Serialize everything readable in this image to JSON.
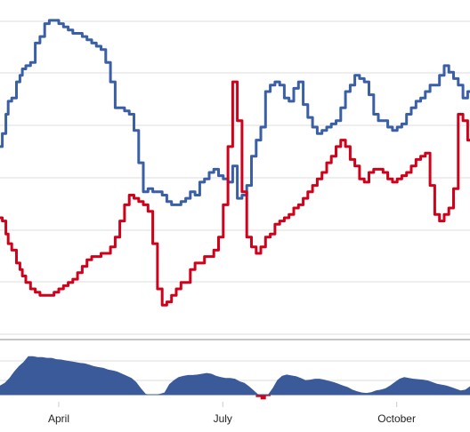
{
  "colors": {
    "series_blue": "#3a5fa6",
    "series_red": "#d0021b",
    "osc_fill": "#3a5a9a",
    "osc_neg": "#d0021b",
    "grid": "#dddddd",
    "divider": "#888888"
  },
  "chart_data": [
    {
      "type": "line",
      "title": "",
      "xlabel": "",
      "ylabel": "",
      "x_tick_labels": [
        "April",
        "July",
        "October"
      ],
      "x_tick_positions": [
        0.125,
        0.474,
        0.844
      ],
      "ylim": [
        0,
        100
      ],
      "grid": true,
      "legend": "none",
      "series": [
        {
          "color": "#3a5fa6",
          "x": [
            0.0,
            0.01,
            0.015,
            0.02,
            0.03,
            0.04,
            0.045,
            0.05,
            0.06,
            0.07,
            0.08,
            0.09,
            0.1,
            0.11,
            0.12,
            0.13,
            0.14,
            0.15,
            0.16,
            0.17,
            0.18,
            0.19,
            0.2,
            0.21,
            0.22,
            0.23,
            0.24,
            0.25,
            0.26,
            0.27,
            0.28,
            0.29,
            0.3,
            0.31,
            0.32,
            0.33,
            0.34,
            0.35,
            0.36,
            0.37,
            0.38,
            0.39,
            0.4,
            0.41,
            0.42,
            0.43,
            0.44,
            0.45,
            0.46,
            0.47,
            0.48,
            0.49,
            0.5,
            0.51,
            0.52,
            0.53,
            0.54,
            0.55,
            0.56,
            0.57,
            0.58,
            0.59,
            0.6,
            0.61,
            0.62,
            0.63,
            0.64,
            0.65,
            0.66,
            0.67,
            0.68,
            0.69,
            0.7,
            0.71,
            0.72,
            0.73,
            0.74,
            0.75,
            0.76,
            0.77,
            0.78,
            0.79,
            0.8,
            0.81,
            0.82,
            0.83,
            0.84,
            0.85,
            0.86,
            0.87,
            0.88,
            0.89,
            0.9,
            0.91,
            0.92,
            0.93,
            0.94,
            0.95,
            0.96,
            0.97,
            0.98,
            0.99,
            1.0
          ],
          "y": [
            58,
            62,
            68,
            72,
            73,
            78,
            80,
            82,
            83,
            84,
            90,
            92,
            96,
            97,
            97,
            96,
            95,
            94,
            93,
            93,
            92,
            91,
            90,
            89,
            88,
            84,
            78,
            70,
            70,
            69,
            68,
            63,
            53,
            44,
            45,
            44,
            44,
            43,
            41,
            40,
            40,
            41,
            42,
            44,
            43,
            47,
            48,
            50,
            51,
            49,
            48,
            47,
            52,
            42,
            43,
            46,
            55,
            60,
            64,
            75,
            77,
            78,
            77,
            73,
            72,
            76,
            78,
            71,
            67,
            64,
            62,
            63,
            64,
            65,
            66,
            70,
            75,
            77,
            80,
            79,
            78,
            74,
            68,
            66,
            66,
            64,
            63,
            64,
            65,
            68,
            70,
            72,
            73,
            75,
            77,
            77,
            80,
            83,
            81,
            79,
            77,
            73,
            75
          ]
        },
        {
          "color": "#d0021b",
          "x": [
            0.0,
            0.01,
            0.015,
            0.02,
            0.03,
            0.04,
            0.045,
            0.05,
            0.06,
            0.07,
            0.08,
            0.09,
            0.1,
            0.11,
            0.12,
            0.13,
            0.14,
            0.15,
            0.16,
            0.17,
            0.18,
            0.19,
            0.2,
            0.21,
            0.22,
            0.23,
            0.24,
            0.25,
            0.26,
            0.27,
            0.28,
            0.29,
            0.3,
            0.31,
            0.32,
            0.33,
            0.34,
            0.35,
            0.36,
            0.37,
            0.38,
            0.39,
            0.4,
            0.41,
            0.42,
            0.43,
            0.44,
            0.45,
            0.46,
            0.47,
            0.48,
            0.49,
            0.5,
            0.51,
            0.52,
            0.53,
            0.54,
            0.55,
            0.56,
            0.57,
            0.58,
            0.59,
            0.6,
            0.61,
            0.62,
            0.63,
            0.64,
            0.65,
            0.66,
            0.67,
            0.68,
            0.69,
            0.7,
            0.71,
            0.72,
            0.73,
            0.74,
            0.75,
            0.76,
            0.77,
            0.78,
            0.79,
            0.8,
            0.81,
            0.82,
            0.83,
            0.84,
            0.85,
            0.86,
            0.87,
            0.88,
            0.89,
            0.9,
            0.91,
            0.92,
            0.93,
            0.94,
            0.95,
            0.96,
            0.97,
            0.98,
            0.99,
            1.0
          ],
          "y": [
            36,
            35,
            31,
            28,
            26,
            22,
            20,
            18,
            16,
            14,
            13,
            12,
            12,
            12,
            13,
            14,
            15,
            16,
            17,
            19,
            21,
            23,
            24,
            24,
            25,
            25,
            27,
            30,
            35,
            40,
            43,
            42,
            41,
            40,
            38,
            28,
            14,
            9,
            10,
            12,
            14,
            16,
            16,
            20,
            22,
            22,
            24,
            24,
            26,
            30,
            40,
            58,
            78,
            66,
            44,
            30,
            27,
            25,
            27,
            30,
            31,
            34,
            35,
            36,
            37,
            39,
            40,
            42,
            44,
            46,
            48,
            50,
            53,
            55,
            58,
            60,
            58,
            54,
            52,
            48,
            47,
            50,
            51,
            51,
            50,
            48,
            47,
            48,
            49,
            50,
            52,
            54,
            55,
            56,
            46,
            37,
            35,
            37,
            39,
            45,
            68,
            66,
            60
          ]
        }
      ]
    },
    {
      "type": "area",
      "title": "",
      "xlabel": "",
      "ylabel": "",
      "ylim": [
        -15,
        100
      ],
      "grid": true,
      "legend": "none",
      "series": [
        {
          "color": "#3a5a9a",
          "x": [
            0.0,
            0.01,
            0.02,
            0.03,
            0.04,
            0.05,
            0.06,
            0.07,
            0.08,
            0.09,
            0.1,
            0.11,
            0.12,
            0.13,
            0.14,
            0.15,
            0.16,
            0.17,
            0.18,
            0.19,
            0.2,
            0.21,
            0.22,
            0.23,
            0.24,
            0.25,
            0.26,
            0.27,
            0.28,
            0.29,
            0.3,
            0.31,
            0.32,
            0.33,
            0.34,
            0.35,
            0.36,
            0.37,
            0.38,
            0.39,
            0.4,
            0.41,
            0.42,
            0.43,
            0.44,
            0.45,
            0.46,
            0.47,
            0.48,
            0.49,
            0.5,
            0.51,
            0.52,
            0.53,
            0.54,
            0.55,
            0.56,
            0.57,
            0.58,
            0.59,
            0.6,
            0.61,
            0.62,
            0.63,
            0.64,
            0.65,
            0.66,
            0.67,
            0.68,
            0.69,
            0.7,
            0.71,
            0.72,
            0.73,
            0.74,
            0.75,
            0.76,
            0.77,
            0.78,
            0.79,
            0.8,
            0.81,
            0.82,
            0.83,
            0.84,
            0.85,
            0.86,
            0.87,
            0.88,
            0.89,
            0.9,
            0.91,
            0.92,
            0.93,
            0.94,
            0.95,
            0.96,
            0.97,
            0.98,
            0.99,
            1.0
          ],
          "values": [
            22,
            28,
            40,
            55,
            68,
            78,
            92,
            92,
            90,
            90,
            88,
            88,
            85,
            84,
            82,
            80,
            78,
            76,
            75,
            72,
            68,
            66,
            64,
            60,
            58,
            55,
            50,
            45,
            40,
            30,
            15,
            2,
            0,
            0,
            2,
            5,
            25,
            35,
            42,
            45,
            47,
            47,
            48,
            50,
            52,
            50,
            45,
            42,
            40,
            40,
            38,
            32,
            28,
            20,
            10,
            -5,
            -10,
            -3,
            15,
            35,
            45,
            48,
            46,
            44,
            40,
            35,
            36,
            38,
            38,
            36,
            33,
            30,
            26,
            22,
            18,
            12,
            8,
            5,
            4,
            6,
            10,
            12,
            15,
            22,
            30,
            38,
            42,
            40,
            38,
            37,
            36,
            34,
            30,
            26,
            24,
            22,
            18,
            14,
            10,
            12,
            20
          ]
        }
      ]
    }
  ]
}
